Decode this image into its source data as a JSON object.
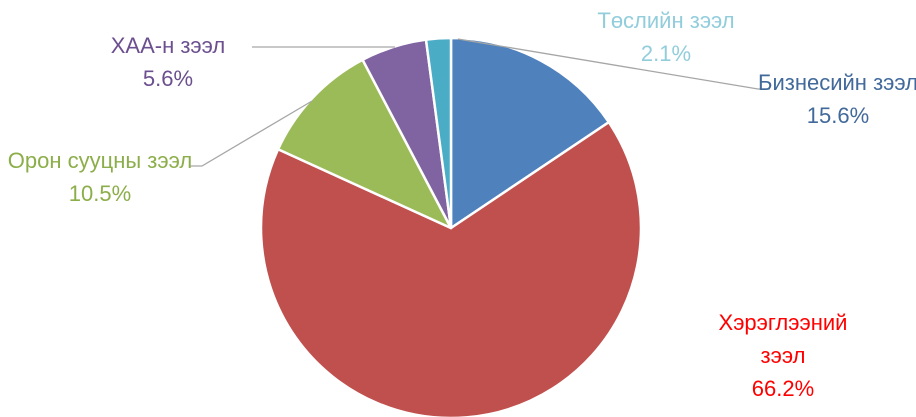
{
  "chart_data": {
    "type": "pie",
    "categories": [
      "Бизнесийн зээл",
      "Хэрэглээний зээл",
      "Орон сууцны зээл",
      "ХАА-н зээл",
      "Төслийн зээл"
    ],
    "values": [
      15.6,
      66.2,
      10.5,
      5.6,
      2.1
    ],
    "value_labels": [
      "15.6%",
      "66.2%",
      "10.5%",
      "5.6%",
      "2.1%"
    ],
    "colors": [
      "#4f81bd",
      "#c0504d",
      "#9bbb59",
      "#8064a2",
      "#4bacc6"
    ],
    "label_colors": [
      "#41699a",
      "#ff0000",
      "#8cae4a",
      "#6b4f8f",
      "#92cddc"
    ]
  }
}
